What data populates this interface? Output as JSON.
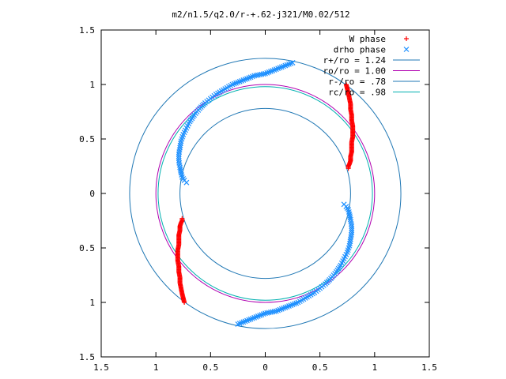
{
  "chart_data": {
    "type": "scatter",
    "title": "m2/n1.5/q2.0/r-+.62-j321/M0.02/512",
    "xlabel": "",
    "ylabel": "",
    "xlim": [
      -1.5,
      1.5
    ],
    "ylim": [
      -1.5,
      1.5
    ],
    "grid": false,
    "legend_position": "top-right",
    "x_ticks": [
      {
        "value": -1.5,
        "label": "1.5"
      },
      {
        "value": -1.0,
        "label": "1"
      },
      {
        "value": -0.5,
        "label": "0.5"
      },
      {
        "value": 0,
        "label": "0"
      },
      {
        "value": 0.5,
        "label": "0.5"
      },
      {
        "value": 1.0,
        "label": "1"
      },
      {
        "value": 1.5,
        "label": "1.5"
      }
    ],
    "y_ticks": [
      {
        "value": 1.5,
        "label": "1.5"
      },
      {
        "value": 1.0,
        "label": "1"
      },
      {
        "value": 0.5,
        "label": "0.5"
      },
      {
        "value": 0,
        "label": "0"
      },
      {
        "value": -0.5,
        "label": "0.5"
      },
      {
        "value": -1.0,
        "label": "1"
      },
      {
        "value": -1.5,
        "label": "1.5"
      }
    ],
    "series": [
      {
        "name": "W phase",
        "marker": "plus",
        "color": "#ff0000",
        "points": [
          [
            0.74,
            1.0
          ],
          [
            0.75,
            0.96
          ],
          [
            0.76,
            0.92
          ],
          [
            0.77,
            0.87
          ],
          [
            0.78,
            0.82
          ],
          [
            0.78,
            0.77
          ],
          [
            0.79,
            0.72
          ],
          [
            0.79,
            0.67
          ],
          [
            0.8,
            0.62
          ],
          [
            0.8,
            0.57
          ],
          [
            0.8,
            0.52
          ],
          [
            0.79,
            0.47
          ],
          [
            0.79,
            0.42
          ],
          [
            0.79,
            0.38
          ],
          [
            0.78,
            0.34
          ],
          [
            0.78,
            0.3
          ],
          [
            0.77,
            0.27
          ],
          [
            0.76,
            0.25
          ],
          [
            0.76,
            0.23
          ],
          [
            -0.74,
            -1.0
          ],
          [
            -0.75,
            -0.96
          ],
          [
            -0.76,
            -0.92
          ],
          [
            -0.77,
            -0.87
          ],
          [
            -0.78,
            -0.82
          ],
          [
            -0.78,
            -0.77
          ],
          [
            -0.79,
            -0.72
          ],
          [
            -0.79,
            -0.67
          ],
          [
            -0.8,
            -0.62
          ],
          [
            -0.8,
            -0.57
          ],
          [
            -0.8,
            -0.52
          ],
          [
            -0.79,
            -0.47
          ],
          [
            -0.79,
            -0.42
          ],
          [
            -0.79,
            -0.38
          ],
          [
            -0.78,
            -0.34
          ],
          [
            -0.78,
            -0.3
          ],
          [
            -0.77,
            -0.27
          ],
          [
            -0.76,
            -0.25
          ],
          [
            -0.76,
            -0.23
          ]
        ]
      },
      {
        "name": "drho phase",
        "marker": "cross",
        "color": "#1e90ff",
        "points": [
          [
            0.25,
            1.2
          ],
          [
            0.2,
            1.18
          ],
          [
            0.15,
            1.16
          ],
          [
            0.1,
            1.14
          ],
          [
            0.05,
            1.12
          ],
          [
            0.0,
            1.1
          ],
          [
            -0.05,
            1.09
          ],
          [
            -0.1,
            1.08
          ],
          [
            -0.15,
            1.06
          ],
          [
            -0.2,
            1.04
          ],
          [
            -0.25,
            1.02
          ],
          [
            -0.3,
            1.0
          ],
          [
            -0.35,
            0.97
          ],
          [
            -0.4,
            0.94
          ],
          [
            -0.45,
            0.91
          ],
          [
            -0.5,
            0.87
          ],
          [
            -0.55,
            0.83
          ],
          [
            -0.6,
            0.78
          ],
          [
            -0.65,
            0.72
          ],
          [
            -0.69,
            0.66
          ],
          [
            -0.72,
            0.6
          ],
          [
            -0.75,
            0.54
          ],
          [
            -0.77,
            0.48
          ],
          [
            -0.78,
            0.42
          ],
          [
            -0.79,
            0.36
          ],
          [
            -0.79,
            0.3
          ],
          [
            -0.78,
            0.24
          ],
          [
            -0.77,
            0.19
          ],
          [
            -0.76,
            0.15
          ],
          [
            -0.74,
            0.12
          ],
          [
            -0.72,
            0.1
          ],
          [
            -0.25,
            -1.2
          ],
          [
            -0.2,
            -1.18
          ],
          [
            -0.15,
            -1.16
          ],
          [
            -0.1,
            -1.14
          ],
          [
            -0.05,
            -1.12
          ],
          [
            0.0,
            -1.1
          ],
          [
            0.05,
            -1.09
          ],
          [
            0.1,
            -1.08
          ],
          [
            0.15,
            -1.06
          ],
          [
            0.2,
            -1.04
          ],
          [
            0.25,
            -1.02
          ],
          [
            0.3,
            -1.0
          ],
          [
            0.35,
            -0.97
          ],
          [
            0.4,
            -0.94
          ],
          [
            0.45,
            -0.91
          ],
          [
            0.5,
            -0.87
          ],
          [
            0.55,
            -0.83
          ],
          [
            0.6,
            -0.78
          ],
          [
            0.65,
            -0.72
          ],
          [
            0.69,
            -0.66
          ],
          [
            0.72,
            -0.6
          ],
          [
            0.75,
            -0.54
          ],
          [
            0.77,
            -0.48
          ],
          [
            0.78,
            -0.42
          ],
          [
            0.79,
            -0.36
          ],
          [
            0.79,
            -0.3
          ],
          [
            0.78,
            -0.24
          ],
          [
            0.77,
            -0.19
          ],
          [
            0.76,
            -0.15
          ],
          [
            0.74,
            -0.12
          ],
          [
            0.72,
            -0.1
          ]
        ]
      },
      {
        "name": "r+/ro = 1.24",
        "type": "circle",
        "radius": 1.24,
        "color": "#1f77b4"
      },
      {
        "name": "ro/ro = 1.00",
        "type": "circle",
        "radius": 1.0,
        "color": "#b000b0"
      },
      {
        "name": "r-/ro = .78",
        "type": "circle",
        "radius": 0.78,
        "color": "#1f77b4"
      },
      {
        "name": "rc/ro = .98",
        "type": "circle",
        "radius": 0.98,
        "color": "#00b0b0"
      }
    ]
  }
}
